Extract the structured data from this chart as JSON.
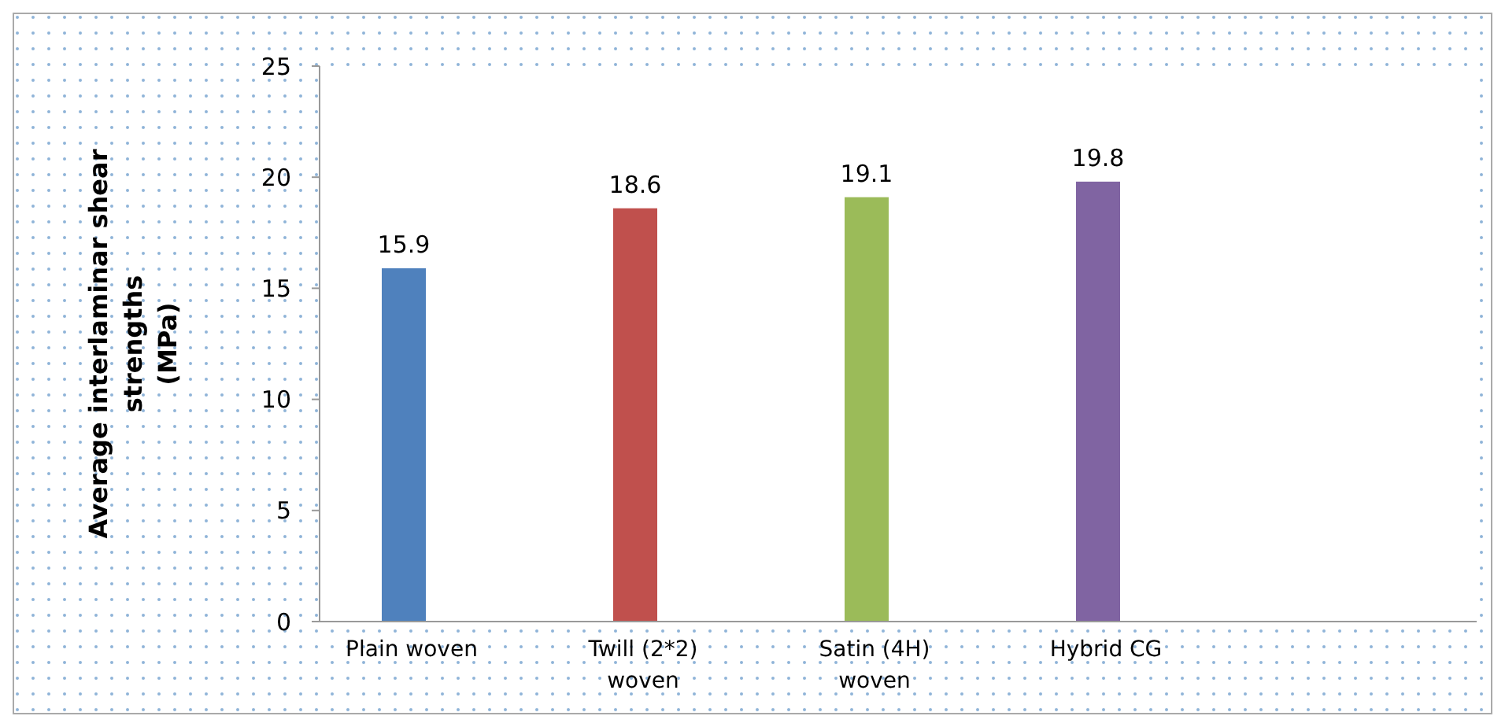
{
  "chart_data": {
    "type": "bar",
    "ylabel": "Average interlaminar shear strengths (MPa)",
    "categories": [
      "Plain woven",
      "Twill (2*2) woven",
      "Satin (4H) woven",
      "Hybrid CG"
    ],
    "values": [
      15.9,
      18.6,
      19.1,
      19.8
    ],
    "colors": [
      "#4f81bd",
      "#c0504d",
      "#9bbb59",
      "#8064a2"
    ],
    "ylim": [
      0,
      25
    ],
    "yticks": [
      0,
      5,
      10,
      15,
      20,
      25
    ],
    "data_labels": true,
    "grid": false
  }
}
